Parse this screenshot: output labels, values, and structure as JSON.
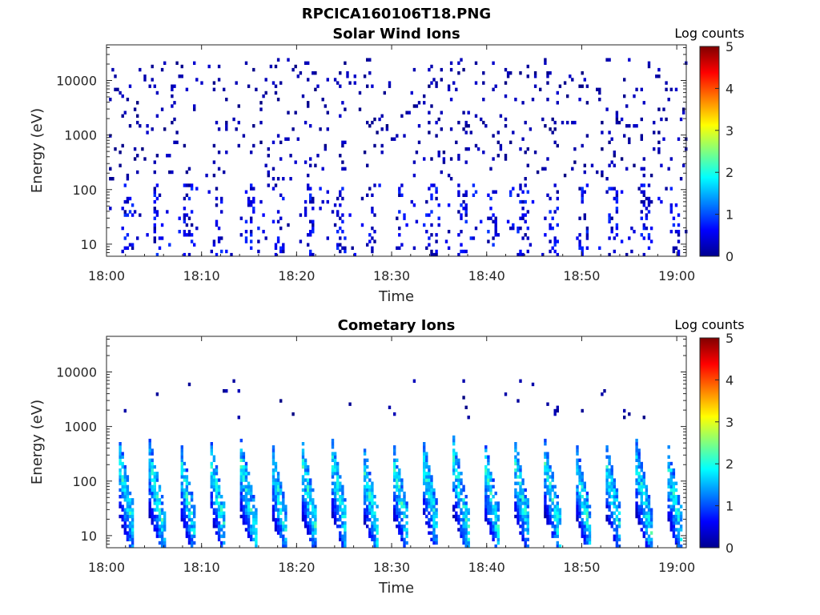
{
  "figure_title": "RPCICA160106T18.PNG",
  "chart_data": [
    {
      "type": "heatmap",
      "title": "Solar Wind Ions",
      "xlabel": "Time",
      "ylabel": "Energy (eV)",
      "x_ticks": [
        "18:00",
        "18:10",
        "18:20",
        "18:30",
        "18:40",
        "18:50",
        "19:00"
      ],
      "x_range_minutes": [
        0,
        61
      ],
      "y_scale": "log",
      "y_ticks": [
        10,
        100,
        1000,
        10000
      ],
      "y_range": [
        6,
        45000
      ],
      "colorbar": {
        "label": "Log counts",
        "ticks": [
          0,
          1,
          2,
          3,
          4,
          5
        ],
        "range": [
          0,
          5
        ],
        "colormap": "jet"
      },
      "cycle_minutes": 3.2,
      "cycle_first_minute": 1.5,
      "low_energy_band": {
        "energy_range": [
          6,
          120
        ],
        "log_counts": [
          0.1,
          0.8
        ]
      },
      "scatter_band": {
        "energy_range": [
          150,
          25000
        ],
        "log_counts": [
          0.0,
          0.4
        ]
      },
      "grid": false
    },
    {
      "type": "heatmap",
      "title": "Cometary Ions",
      "xlabel": "Time",
      "ylabel": "Energy (eV)",
      "x_ticks": [
        "18:00",
        "18:10",
        "18:20",
        "18:30",
        "18:40",
        "18:50",
        "19:00"
      ],
      "x_range_minutes": [
        0,
        61
      ],
      "y_scale": "log",
      "y_ticks": [
        10,
        100,
        1000,
        10000
      ],
      "y_range": [
        6,
        45000
      ],
      "colorbar": {
        "label": "Log counts",
        "ticks": [
          0,
          1,
          2,
          3,
          4,
          5
        ],
        "range": [
          0,
          5
        ],
        "colormap": "jet"
      },
      "cycle_minutes": 3.2,
      "cycle_first_minute": 1.2,
      "energy_sweep": {
        "energy_range": [
          10,
          600
        ],
        "peak_log_counts": 2.4
      },
      "scatter_band": {
        "energy_range": [
          1500,
          8000
        ],
        "log_counts": [
          0.0,
          0.3
        ]
      },
      "grid": false
    }
  ]
}
